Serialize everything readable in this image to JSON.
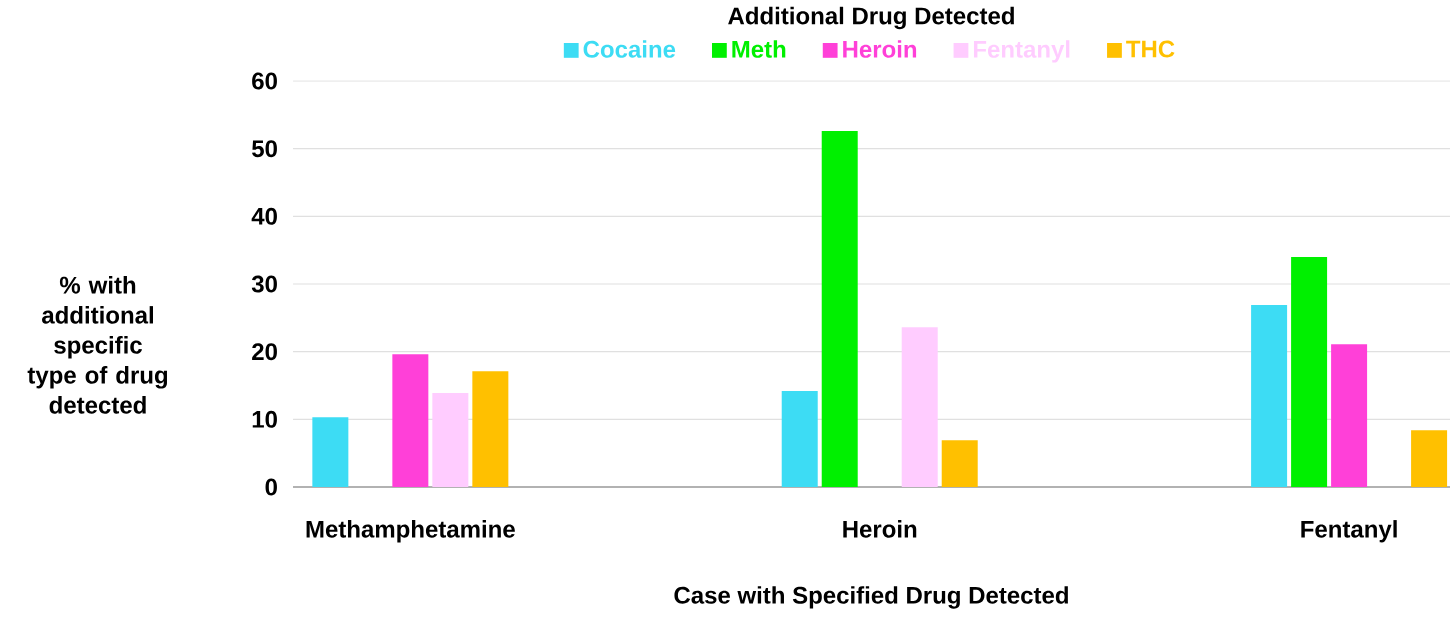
{
  "chart_data": {
    "type": "bar",
    "legend_title": "Additional Drug Detected",
    "xlabel": "Case with Specified Drug Detected",
    "ylabel": "% with additional specific type of drug detected",
    "categories": [
      "Methamphetamine",
      "Heroin",
      "Fentanyl"
    ],
    "series": [
      {
        "name": "Cocaine",
        "color": "#3ddcf4",
        "values": [
          10.3,
          14.2,
          26.9
        ]
      },
      {
        "name": "Meth",
        "color": "#00f000",
        "values": [
          null,
          52.6,
          34.0
        ]
      },
      {
        "name": "Heroin",
        "color": "#ff40d8",
        "values": [
          19.6,
          null,
          21.1
        ]
      },
      {
        "name": "Fentanyl",
        "color": "#ffccff",
        "values": [
          13.9,
          23.6,
          null
        ]
      },
      {
        "name": "THC",
        "color": "#ffc000",
        "values": [
          17.1,
          6.9,
          8.4
        ]
      }
    ],
    "ylim": [
      0,
      60
    ],
    "yticks": [
      0,
      10,
      20,
      30,
      40,
      50,
      60
    ],
    "grid": "y",
    "legend": "top"
  }
}
